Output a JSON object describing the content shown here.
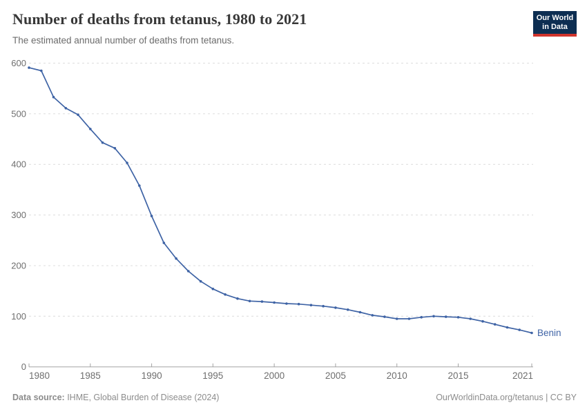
{
  "header": {
    "title": "Number of deaths from tetanus, 1980 to 2021",
    "subtitle": "The estimated annual number of deaths from tetanus.",
    "logo": {
      "line1": "Our World",
      "line2": "in Data",
      "bg_color": "#0d2e52",
      "accent_color": "#d0342c"
    }
  },
  "chart_data": {
    "type": "line",
    "title": "Number of deaths from tetanus, 1980 to 2021",
    "xlabel": "",
    "ylabel": "",
    "xlim": [
      1980,
      2021
    ],
    "ylim": [
      0,
      600
    ],
    "x_ticks": [
      1980,
      1985,
      1990,
      1995,
      2000,
      2005,
      2010,
      2015,
      2021
    ],
    "y_ticks": [
      0,
      100,
      200,
      300,
      400,
      500,
      600
    ],
    "grid": "horizontal-dashed",
    "legend_position": "end-of-line",
    "series": [
      {
        "name": "Benin",
        "color": "#3e63a5",
        "x": [
          1980,
          1981,
          1982,
          1983,
          1984,
          1985,
          1986,
          1987,
          1988,
          1989,
          1990,
          1991,
          1992,
          1993,
          1994,
          1995,
          1996,
          1997,
          1998,
          1999,
          2000,
          2001,
          2002,
          2003,
          2004,
          2005,
          2006,
          2007,
          2008,
          2009,
          2010,
          2011,
          2012,
          2013,
          2014,
          2015,
          2016,
          2017,
          2018,
          2019,
          2020,
          2021
        ],
        "values": [
          591,
          585,
          533,
          511,
          498,
          470,
          443,
          432,
          403,
          358,
          298,
          245,
          214,
          189,
          169,
          154,
          143,
          135,
          130,
          129,
          127,
          125,
          124,
          122,
          120,
          117,
          113,
          108,
          102,
          99,
          95,
          95,
          98,
          100,
          99,
          98,
          95,
          90,
          84,
          78,
          73,
          67
        ]
      }
    ]
  },
  "footer": {
    "source_label": "Data source:",
    "source_text": " IHME, Global Burden of Disease (2024)",
    "right_text": "OurWorldinData.org/tetanus | CC BY"
  }
}
